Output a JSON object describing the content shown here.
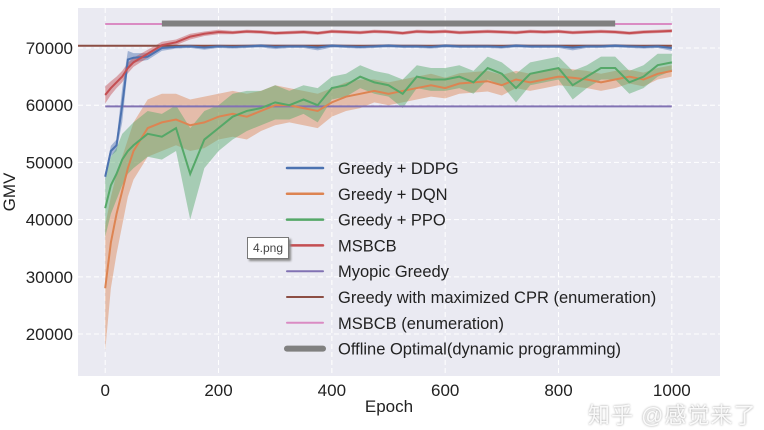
{
  "chart_data": {
    "type": "line",
    "xlabel": "Epoch",
    "ylabel": "GMV",
    "xlim": [
      -48,
      1085
    ],
    "ylim": [
      12660,
      77000
    ],
    "xticks": [
      0,
      200,
      400,
      600,
      800,
      1000
    ],
    "yticks": [
      20000,
      30000,
      40000,
      50000,
      60000,
      70000
    ],
    "grid": true,
    "legend_placement": "lower-center",
    "background": "#eaeaf2",
    "x": [
      0,
      10,
      20,
      30,
      40,
      50,
      75,
      100,
      125,
      150,
      175,
      200,
      225,
      250,
      275,
      300,
      325,
      350,
      375,
      400,
      425,
      450,
      475,
      500,
      525,
      550,
      575,
      600,
      625,
      650,
      675,
      700,
      725,
      750,
      775,
      800,
      825,
      850,
      875,
      900,
      925,
      950,
      975,
      1000
    ],
    "series": [
      {
        "name": "Greedy + DDPG",
        "color": "#4c72b0",
        "values": [
          47500,
          52000,
          53000,
          60000,
          68000,
          68300,
          68500,
          70000,
          70200,
          70300,
          70100,
          70300,
          70200,
          70300,
          70400,
          70200,
          70300,
          70300,
          70100,
          70400,
          70300,
          70200,
          70300,
          70400,
          70300,
          70300,
          70200,
          70400,
          70300,
          70300,
          70300,
          70200,
          70400,
          70300,
          70300,
          70300,
          70100,
          70300,
          70300,
          70400,
          70300,
          70200,
          70300,
          70000
        ],
        "spread": [
          800,
          900,
          1000,
          3000,
          1500,
          800,
          600,
          500,
          300,
          300,
          400,
          300,
          300,
          300,
          300,
          400,
          300,
          300,
          500,
          300,
          300,
          300,
          300,
          300,
          300,
          300,
          300,
          300,
          300,
          300,
          300,
          300,
          300,
          300,
          300,
          300,
          500,
          300,
          300,
          300,
          300,
          300,
          300,
          500
        ]
      },
      {
        "name": "Greedy + DQN",
        "color": "#dd8452",
        "values": [
          28000,
          36000,
          41000,
          45000,
          49000,
          52000,
          56000,
          57000,
          57500,
          56500,
          57000,
          58000,
          58500,
          58000,
          59000,
          60000,
          60000,
          59500,
          59000,
          60500,
          61500,
          62000,
          62500,
          62000,
          62500,
          63000,
          63500,
          63000,
          63800,
          64000,
          64200,
          63500,
          64500,
          64000,
          64500,
          65000,
          64800,
          64500,
          64000,
          64500,
          65000,
          64500,
          65500,
          66000
        ],
        "spread": [
          11000,
          8000,
          7000,
          6000,
          5000,
          5000,
          5000,
          5000,
          4500,
          4500,
          4500,
          4000,
          4000,
          4000,
          3500,
          3500,
          3000,
          3000,
          3000,
          2500,
          2500,
          2500,
          2000,
          2000,
          2000,
          2000,
          2000,
          1800,
          1800,
          1800,
          1800,
          1800,
          1500,
          1500,
          1500,
          1500,
          1500,
          1500,
          1500,
          1500,
          1200,
          1200,
          1000,
          1000
        ]
      },
      {
        "name": "Greedy + PPO",
        "color": "#55a868",
        "values": [
          42000,
          46000,
          48000,
          50500,
          52000,
          53000,
          55000,
          54500,
          56000,
          48000,
          54000,
          56000,
          58000,
          59000,
          59500,
          60500,
          60000,
          61000,
          60000,
          63000,
          63500,
          65000,
          64000,
          63500,
          62000,
          65000,
          64500,
          64500,
          65000,
          64000,
          66500,
          65500,
          63000,
          65500,
          66000,
          66500,
          63500,
          65000,
          66500,
          66500,
          64000,
          65000,
          67000,
          67500
        ],
        "spread": [
          5000,
          5000,
          4500,
          4500,
          4000,
          4000,
          4000,
          4000,
          4000,
          8000,
          5000,
          4000,
          4000,
          3500,
          3000,
          3000,
          2500,
          2500,
          3000,
          2000,
          2000,
          2000,
          2000,
          2000,
          2500,
          2000,
          2000,
          2000,
          2000,
          2000,
          2000,
          2000,
          2500,
          2000,
          2000,
          2000,
          2500,
          2000,
          2000,
          2000,
          2000,
          2000,
          2000,
          1500
        ]
      },
      {
        "name": "MSBCB",
        "color": "#c44e52",
        "values": [
          61800,
          63000,
          64000,
          65000,
          66500,
          67500,
          69000,
          70500,
          71000,
          72000,
          72500,
          72800,
          72700,
          72900,
          72800,
          72600,
          72700,
          72800,
          72600,
          72900,
          72800,
          72700,
          72900,
          72800,
          72600,
          72900,
          72800,
          72900,
          72700,
          72800,
          72900,
          72800,
          72700,
          72900,
          72800,
          72900,
          72700,
          72800,
          72900,
          72800,
          72600,
          72800,
          72900,
          73000
        ],
        "spread": [
          1500,
          1200,
          1000,
          1000,
          900,
          800,
          700,
          600,
          500,
          500,
          400,
          400,
          300,
          300,
          300,
          300,
          300,
          300,
          300,
          300,
          300,
          300,
          300,
          300,
          300,
          300,
          300,
          300,
          300,
          300,
          300,
          300,
          300,
          300,
          300,
          300,
          300,
          300,
          300,
          300,
          300,
          300,
          300,
          300
        ]
      }
    ],
    "hlines": [
      {
        "name": "Myopic Greedy",
        "color": "#8172b3",
        "value": 59800,
        "x": [
          0,
          1000
        ],
        "width": 2
      },
      {
        "name": "Greedy with maximized CPR (enumeration)",
        "color": "#8c4e44",
        "value": 70400,
        "x": [
          -48,
          1000
        ],
        "width": 2
      },
      {
        "name": "MSBCB (enumeration)",
        "color": "#da8bc3",
        "value": 74200,
        "x": [
          0,
          1000
        ],
        "width": 2
      },
      {
        "name": "Offline Optimal(dynamic programming)",
        "color": "#808080",
        "value": 74300,
        "x": [
          100,
          900
        ],
        "width": 6
      }
    ]
  },
  "tooltip": "4.png",
  "watermark": "知乎 @感觉来了"
}
